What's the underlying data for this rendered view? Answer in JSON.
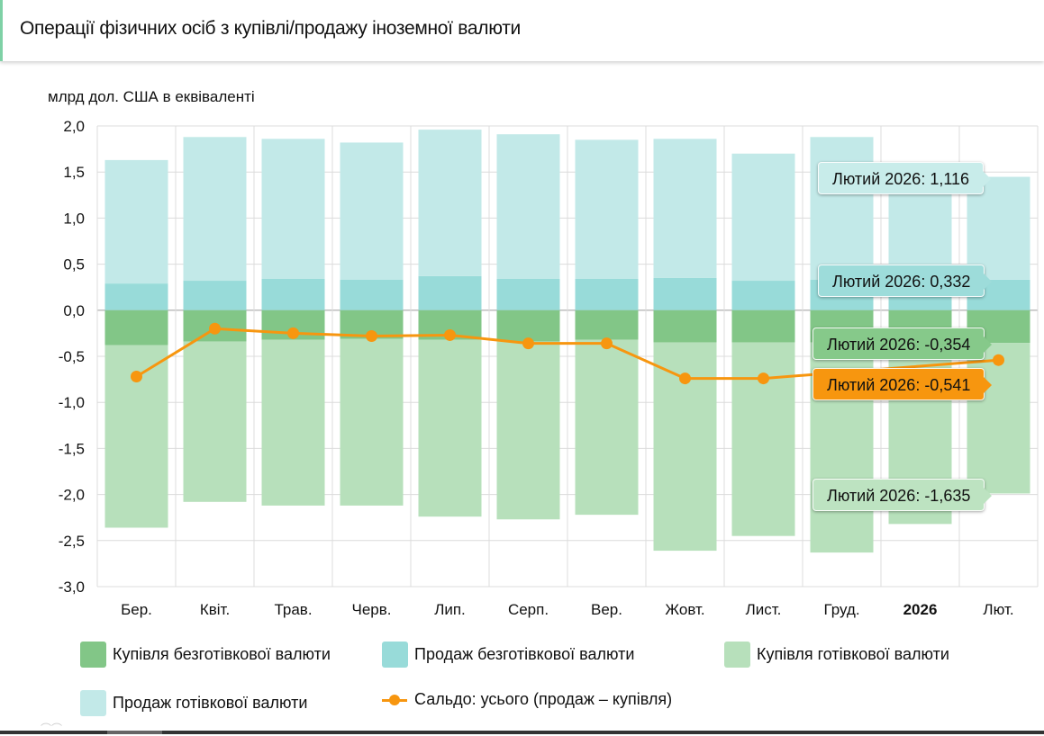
{
  "header": {
    "title": "Операції фізичних осіб з купівлі/продажу іноземної валюти"
  },
  "colors": {
    "buy_noncash": "#82c687",
    "sell_noncash": "#98dbd9",
    "buy_cash": "#b7e0bb",
    "sell_cash": "#c2e9e8",
    "saldo": "#f7960f",
    "grid": "#dcdcdc",
    "accent": "#7fd1a6"
  },
  "chart_data": {
    "type": "bar",
    "stacked": true,
    "title": "Операції фізичних осіб з купівлі/продажу іноземної валюти",
    "ylabel": "млрд дол. США в еквіваленті",
    "xlabel": "",
    "ylim": [
      -3.0,
      2.0
    ],
    "yticks": [
      2.0,
      1.5,
      1.0,
      0.5,
      0.0,
      -0.5,
      -1.0,
      -1.5,
      -2.0,
      -2.5,
      -3.0
    ],
    "ytick_labels": [
      "2,0",
      "1,5",
      "1,0",
      "0,5",
      "0,0",
      "-0,5",
      "-1,0",
      "-1,5",
      "-2,0",
      "-2,5",
      "-3,0"
    ],
    "grid": true,
    "categories": [
      "Бер.",
      "Квіт.",
      "Трав.",
      "Черв.",
      "Лип.",
      "Серп.",
      "Вер.",
      "Жовт.",
      "Лист.",
      "Груд.",
      "2026",
      "Лют."
    ],
    "bold_categories": [
      "2026"
    ],
    "series": [
      {
        "name": "Купівля безготівкової валюти",
        "key": "buy_noncash",
        "type": "bar",
        "values": [
          -0.38,
          -0.34,
          -0.32,
          -0.31,
          -0.32,
          -0.34,
          -0.32,
          -0.35,
          -0.35,
          -0.35,
          -0.35,
          -0.354
        ]
      },
      {
        "name": "Продаж безготівкової валюти",
        "key": "sell_noncash",
        "type": "bar",
        "values": [
          0.29,
          0.32,
          0.34,
          0.33,
          0.37,
          0.34,
          0.34,
          0.35,
          0.32,
          0.33,
          0.33,
          0.332
        ]
      },
      {
        "name": "Купівля готівкової валюти",
        "key": "buy_cash",
        "type": "bar",
        "values": [
          -1.98,
          -1.74,
          -1.8,
          -1.81,
          -1.92,
          -1.93,
          -1.9,
          -2.26,
          -2.1,
          -2.28,
          -1.97,
          -1.635
        ]
      },
      {
        "name": "Продаж готівкової валюти",
        "key": "sell_cash",
        "type": "bar",
        "values": [
          1.34,
          1.56,
          1.52,
          1.49,
          1.59,
          1.57,
          1.51,
          1.51,
          1.38,
          1.55,
          1.27,
          1.116
        ]
      },
      {
        "name": "Сальдо: усього (продаж – купівля)",
        "key": "saldo",
        "type": "line",
        "values": [
          -0.72,
          -0.2,
          -0.25,
          -0.28,
          -0.27,
          -0.36,
          -0.36,
          -0.74,
          -0.74,
          null,
          null,
          -0.541
        ]
      }
    ],
    "legend_position": "bottom",
    "tooltips": [
      {
        "series": "sell_cash",
        "text": "Лютий 2026: 1,116"
      },
      {
        "series": "sell_noncash",
        "text": "Лютий 2026: 0,332"
      },
      {
        "series": "buy_noncash",
        "text": "Лютий 2026: -0,354"
      },
      {
        "series": "saldo",
        "text": "Лютий 2026: -0,541"
      },
      {
        "series": "buy_cash",
        "text": "Лютий 2026: -1,635"
      }
    ]
  },
  "legend": [
    {
      "label": "Купівля безготівкової валюти",
      "key": "buy_noncash",
      "kind": "swatch"
    },
    {
      "label": "Продаж безготівкової валюти",
      "key": "sell_noncash",
      "kind": "swatch"
    },
    {
      "label": "Купівля готівкової валюти",
      "key": "buy_cash",
      "kind": "swatch"
    },
    {
      "label": "Продаж готівкової валюти",
      "key": "sell_cash",
      "kind": "swatch"
    },
    {
      "label": "Сальдо: усього (продаж – купівля)",
      "key": "saldo",
      "kind": "line"
    }
  ]
}
